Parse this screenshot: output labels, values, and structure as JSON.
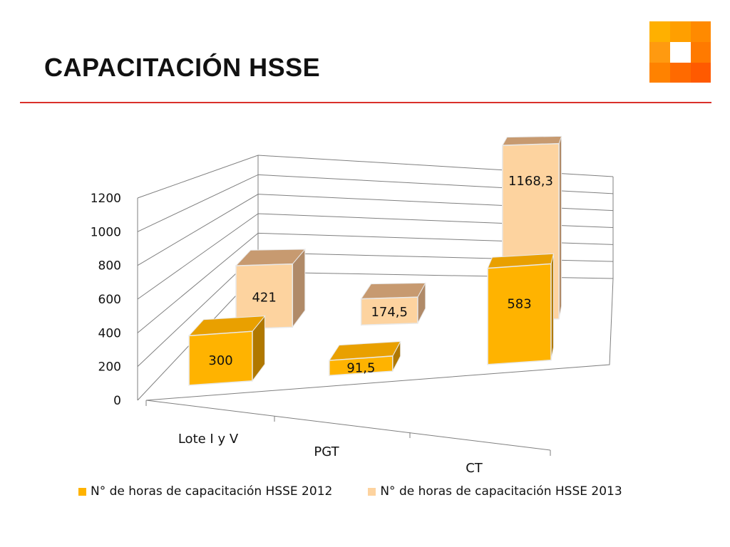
{
  "slide": {
    "title": "CAPACITACIÓN HSSE"
  },
  "colors": {
    "accent_rule": "#d9302a",
    "series_2012": "#ffb300",
    "series_2013": "#fdd39f"
  },
  "chart_data": {
    "type": "bar",
    "style": "3d-clustered-column",
    "categories": [
      "Lote I y V",
      "PGT",
      "CT"
    ],
    "series": [
      {
        "name": "N° de horas de capacitación HSSE 2012",
        "values": [
          300,
          91.5,
          583
        ],
        "labels": [
          "300",
          "91,5",
          "583"
        ]
      },
      {
        "name": "N° de horas de capacitación HSSE 2013",
        "values": [
          421,
          174.5,
          1168.3
        ],
        "labels": [
          "421",
          "174,5",
          "1168,3"
        ]
      }
    ],
    "yticks": [
      "0",
      "200",
      "400",
      "600",
      "800",
      "1000",
      "1200"
    ],
    "ylim": [
      0,
      1200
    ],
    "grid": true,
    "legend": "bottom"
  }
}
